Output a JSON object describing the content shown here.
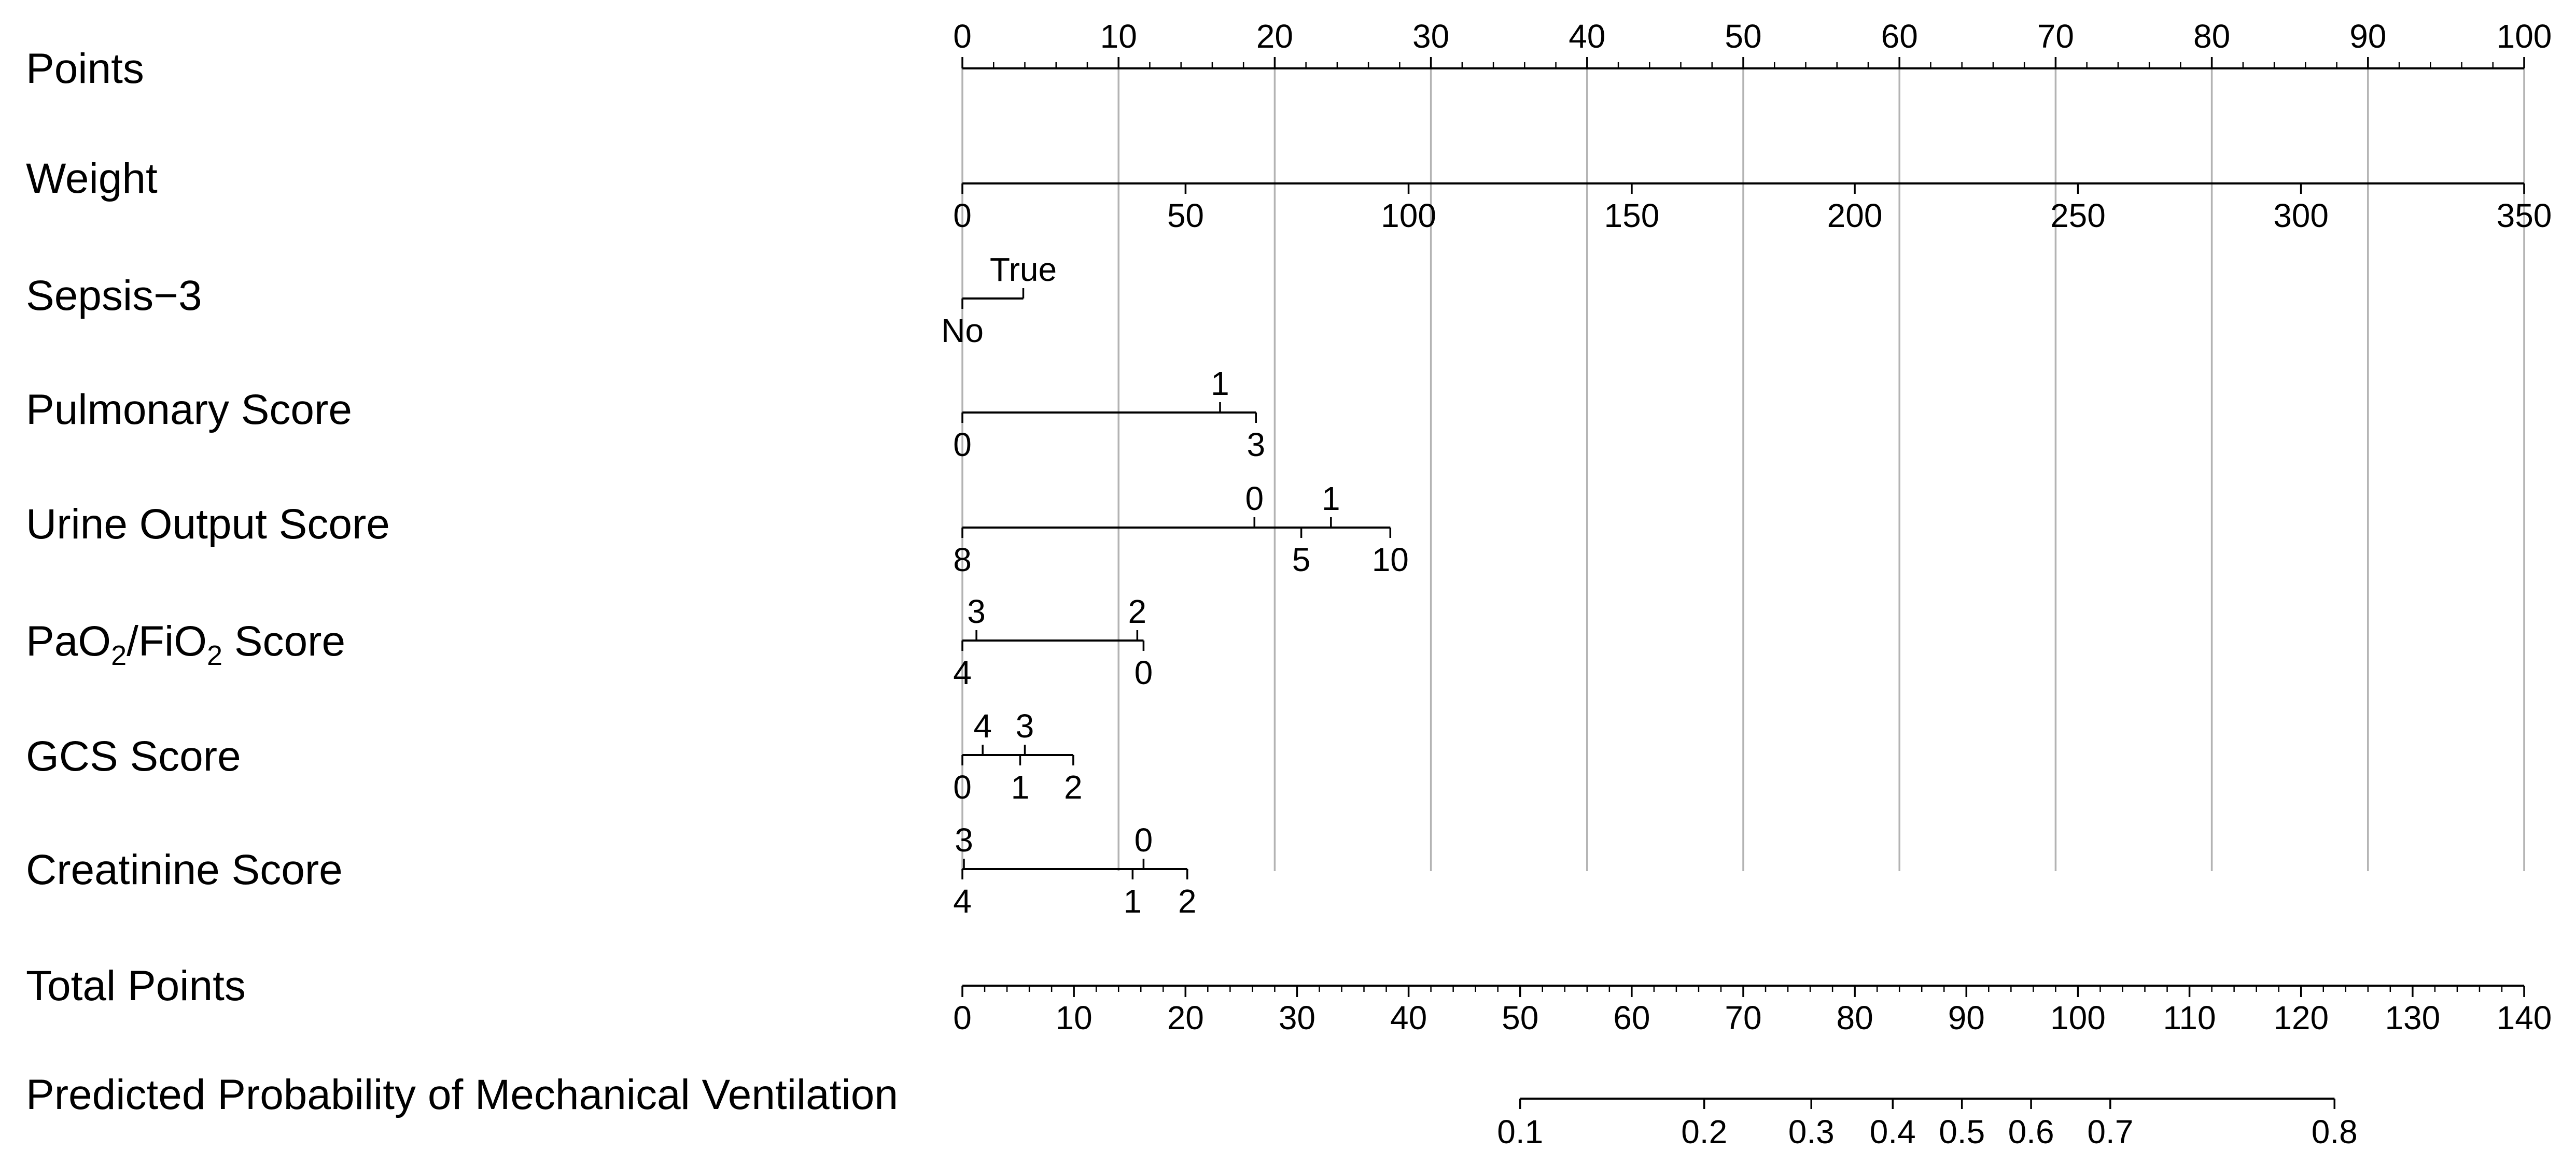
{
  "chart_data": {
    "type": "nomogram",
    "rows": [
      {
        "label": "Points",
        "range": [
          0,
          100
        ],
        "ticks": [
          {
            "v": 0,
            "label": "0"
          },
          {
            "v": 10,
            "label": "10"
          },
          {
            "v": 20,
            "label": "20"
          },
          {
            "v": 30,
            "label": "30"
          },
          {
            "v": 40,
            "label": "40"
          },
          {
            "v": 50,
            "label": "50"
          },
          {
            "v": 60,
            "label": "60"
          },
          {
            "v": 70,
            "label": "70"
          },
          {
            "v": 80,
            "label": "80"
          },
          {
            "v": 90,
            "label": "90"
          },
          {
            "v": 100,
            "label": "100"
          }
        ]
      },
      {
        "label": "Weight",
        "range": [
          0,
          100
        ],
        "ticks": [
          {
            "v": 0,
            "label": "0"
          },
          {
            "v": 14.29,
            "label": "50"
          },
          {
            "v": 28.57,
            "label": "100"
          },
          {
            "v": 42.86,
            "label": "150"
          },
          {
            "v": 57.14,
            "label": "200"
          },
          {
            "v": 71.43,
            "label": "250"
          },
          {
            "v": 85.71,
            "label": "300"
          },
          {
            "v": 100,
            "label": "350"
          }
        ]
      },
      {
        "label": "Sepsis−3",
        "range": [
          0,
          3.9
        ],
        "ticks": [
          {
            "v": 0,
            "label": "No",
            "pos": "below"
          },
          {
            "v": 3.9,
            "label": "True",
            "pos": "above"
          }
        ]
      },
      {
        "label": "Pulmonary Score",
        "range": [
          0,
          18.8
        ],
        "ticks": [
          {
            "v": 0,
            "label": "0",
            "pos": "below"
          },
          {
            "v": 16.5,
            "label": "1",
            "pos": "above"
          },
          {
            "v": 18.8,
            "label": "3",
            "pos": "below"
          }
        ]
      },
      {
        "label": "Urine Output Score",
        "range": [
          0,
          27.4
        ],
        "ticks": [
          {
            "v": 0,
            "label": "8",
            "pos": "below"
          },
          {
            "v": 18.7,
            "label": "0",
            "pos": "above"
          },
          {
            "v": 21.7,
            "label": "5",
            "pos": "below"
          },
          {
            "v": 23.6,
            "label": "1",
            "pos": "above"
          },
          {
            "v": 27.4,
            "label": "10",
            "pos": "below"
          }
        ]
      },
      {
        "label": "PaO",
        "label_sub1": "2",
        "label_mid": "/FiO",
        "label_sub2": "2",
        "label_end": " Score",
        "range": [
          0,
          11.6
        ],
        "ticks": [
          {
            "v": 0,
            "label": "4",
            "pos": "below"
          },
          {
            "v": 0.9,
            "label": "3",
            "pos": "above"
          },
          {
            "v": 11.2,
            "label": "2",
            "pos": "above"
          },
          {
            "v": 11.6,
            "label": "0",
            "pos": "below"
          }
        ]
      },
      {
        "label": "GCS Score",
        "range": [
          0,
          7.1
        ],
        "ticks": [
          {
            "v": 0,
            "label": "0",
            "pos": "below"
          },
          {
            "v": 1.3,
            "label": "4",
            "pos": "above"
          },
          {
            "v": 3.7,
            "label": "1",
            "pos": "below"
          },
          {
            "v": 4.0,
            "label": "3",
            "pos": "above"
          },
          {
            "v": 7.1,
            "label": "2",
            "pos": "below"
          }
        ]
      },
      {
        "label": "Creatinine Score",
        "range": [
          0,
          14.4
        ],
        "ticks": [
          {
            "v": 0,
            "label": "4",
            "pos": "below"
          },
          {
            "v": 0.1,
            "label": "3",
            "pos": "above"
          },
          {
            "v": 10.9,
            "label": "1",
            "pos": "below"
          },
          {
            "v": 11.6,
            "label": "0",
            "pos": "above"
          },
          {
            "v": 14.4,
            "label": "2",
            "pos": "below"
          }
        ]
      },
      {
        "label": "Total Points",
        "range": [
          0,
          140
        ],
        "ticks": [
          {
            "v": 0,
            "label": "0"
          },
          {
            "v": 10,
            "label": "10"
          },
          {
            "v": 20,
            "label": "20"
          },
          {
            "v": 30,
            "label": "30"
          },
          {
            "v": 40,
            "label": "40"
          },
          {
            "v": 50,
            "label": "50"
          },
          {
            "v": 60,
            "label": "60"
          },
          {
            "v": 70,
            "label": "70"
          },
          {
            "v": 80,
            "label": "80"
          },
          {
            "v": 90,
            "label": "90"
          },
          {
            "v": 100,
            "label": "100"
          },
          {
            "v": 110,
            "label": "110"
          },
          {
            "v": 120,
            "label": "120"
          },
          {
            "v": 130,
            "label": "130"
          },
          {
            "v": 140,
            "label": "140"
          }
        ]
      },
      {
        "label": "Predicted Probability of Mechanical Ventilation",
        "range": [
          50,
          123
        ],
        "ticks": [
          {
            "v": 50,
            "label": "0.1"
          },
          {
            "v": 66.5,
            "label": "0.2"
          },
          {
            "v": 76.1,
            "label": "0.3"
          },
          {
            "v": 83.4,
            "label": "0.4"
          },
          {
            "v": 89.6,
            "label": "0.5"
          },
          {
            "v": 95.8,
            "label": "0.6"
          },
          {
            "v": 102.9,
            "label": "0.7"
          },
          {
            "v": 123,
            "label": "0.8"
          }
        ]
      }
    ],
    "grid": "vertical gridlines at Points scale major ticks"
  }
}
